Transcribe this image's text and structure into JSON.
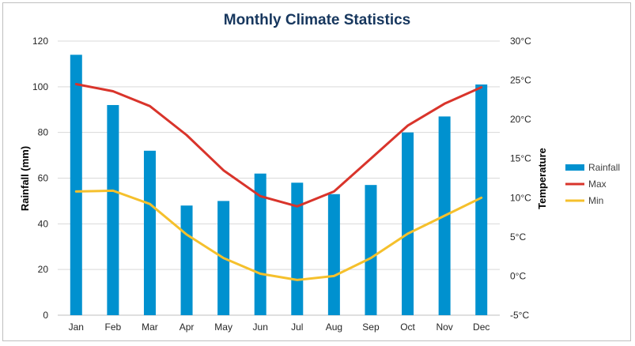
{
  "chart_data": {
    "type": "bar",
    "title": "Monthly Climate Statistics",
    "categories": [
      "Jan",
      "Feb",
      "Mar",
      "Apr",
      "May",
      "Jun",
      "Jul",
      "Aug",
      "Sep",
      "Oct",
      "Nov",
      "Dec"
    ],
    "series": [
      {
        "name": "Rainfall",
        "kind": "bar",
        "axis": "left",
        "color": "#0091cf",
        "values": [
          114,
          92,
          72,
          48,
          50,
          62,
          58,
          53,
          57,
          80,
          87,
          101
        ]
      },
      {
        "name": "Max",
        "kind": "line",
        "axis": "right",
        "color": "#d9342b",
        "values": [
          24.5,
          23.6,
          21.7,
          18.0,
          13.5,
          10.2,
          8.9,
          10.8,
          15.0,
          19.2,
          22.0,
          24.1
        ]
      },
      {
        "name": "Min",
        "kind": "line",
        "axis": "right",
        "color": "#f5c02c",
        "values": [
          10.8,
          10.9,
          9.2,
          5.3,
          2.3,
          0.3,
          -0.5,
          0.0,
          2.3,
          5.4,
          7.7,
          10.0
        ]
      }
    ],
    "ylabel": "Rainfall (mm)",
    "ylabel_right": "Temperature",
    "ylim": [
      0,
      120
    ],
    "ylim_right": [
      -5,
      30
    ],
    "yticks": [
      "0",
      "20",
      "40",
      "60",
      "80",
      "100",
      "120"
    ],
    "yticks_right": [
      "-5°C",
      "0°C",
      "5°C",
      "10°C",
      "15°C",
      "20°C",
      "25°C",
      "30°C"
    ],
    "grid": true,
    "legend_position": "right"
  }
}
